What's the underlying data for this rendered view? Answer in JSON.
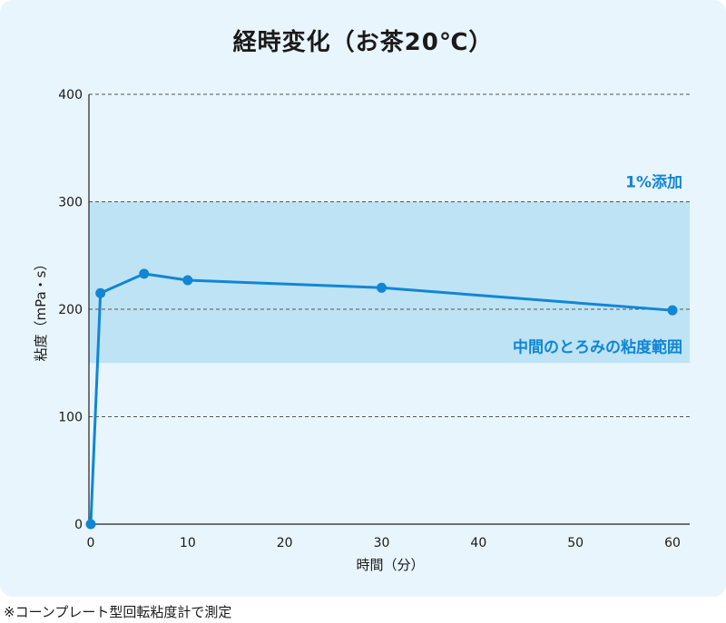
{
  "chart_data": {
    "type": "line",
    "title": "経時変化（お茶20℃）",
    "xlabel": "時間（分）",
    "ylabel": "粘度（mPa・s）",
    "xlim": [
      0,
      62
    ],
    "ylim": [
      0,
      400
    ],
    "x_ticks": [
      "0",
      "10",
      "20",
      "30",
      "40",
      "50",
      "60"
    ],
    "y_ticks": [
      "0",
      "100",
      "200",
      "300",
      "400"
    ],
    "grid": "horizontal-dashed",
    "band": {
      "y_range": [
        150,
        300
      ],
      "label_top": "1%添加",
      "label_bottom": "中間のとろみの粘度範囲",
      "color": "#bde3f5"
    },
    "series": [
      {
        "x": [
          0,
          1,
          5.5,
          10,
          30,
          60
        ],
        "y": [
          0,
          215,
          233,
          227,
          220,
          199
        ],
        "color": "#1186d4"
      }
    ]
  },
  "footnote": "※コーンプレート型回転粘度計で測定",
  "colors": {
    "line": "#1186d4",
    "band": "#bde3f5",
    "background": "#e8f5fc",
    "band_label": "#1186d4"
  }
}
